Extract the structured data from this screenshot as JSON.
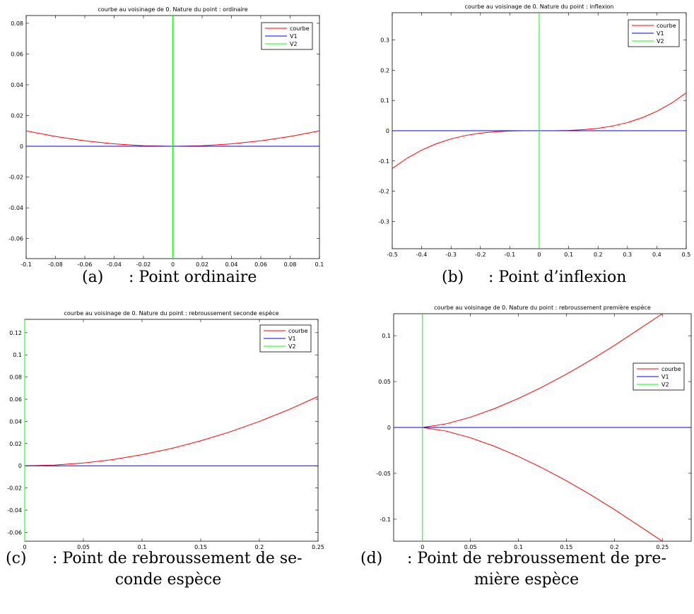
{
  "colors": {
    "courbe": "#ff0000",
    "V1": "#0000ff",
    "V2": "#00ff00"
  },
  "chart_data": [
    {
      "type": "line",
      "title": "courbe au voisinage de 0. Nature du point : ordinaire",
      "xlim": [
        -0.1,
        0.1
      ],
      "ylim": [
        -0.073,
        0.085
      ],
      "xticks": [
        -0.1,
        -0.08,
        -0.06,
        -0.04,
        -0.02,
        0,
        0.02,
        0.04,
        0.06,
        0.08,
        0.1
      ],
      "xtick_labels": [
        "-0.1",
        "-0.08",
        "-0.06",
        "-0.04",
        "-0.02",
        "0",
        "0.02",
        "0.04",
        "0.06",
        "0.08",
        "0.1"
      ],
      "yticks": [
        -0.06,
        -0.04,
        -0.02,
        0,
        0.02,
        0.04,
        0.06,
        0.08
      ],
      "ytick_labels": [
        "-0.06",
        "-0.04",
        "-0.02",
        "0",
        "0.02",
        "0.04",
        "0.06",
        "0.08"
      ],
      "legend": [
        "courbe",
        "V1",
        "V2"
      ],
      "legend_position": "top-right",
      "series": [
        {
          "name": "courbe",
          "x": [
            -0.1,
            -0.08,
            -0.06,
            -0.04,
            -0.02,
            0,
            0.02,
            0.04,
            0.06,
            0.08,
            0.1
          ],
          "y": [
            0.01,
            0.0064,
            0.0036,
            0.0016,
            0.0004,
            0,
            0.0004,
            0.0016,
            0.0036,
            0.0064,
            0.01
          ]
        },
        {
          "name": "V1",
          "x": [
            -0.1,
            0.1
          ],
          "y": [
            0,
            0
          ]
        },
        {
          "name": "V2",
          "x": [
            0,
            0
          ],
          "y": [
            -0.073,
            0.085
          ]
        }
      ],
      "caption": {
        "tag": "(a)",
        "text": ": Point ordinaire",
        "text2": ""
      }
    },
    {
      "type": "line",
      "title": "courbe au voisinage de 0. Nature du point : inflexion",
      "xlim": [
        -0.5,
        0.5
      ],
      "ylim": [
        -0.39,
        0.39
      ],
      "xticks": [
        -0.5,
        -0.4,
        -0.3,
        -0.2,
        -0.1,
        0,
        0.1,
        0.2,
        0.3,
        0.4,
        0.5
      ],
      "xtick_labels": [
        "-0.5",
        "-0.4",
        "-0.3",
        "-0.2",
        "-0.1",
        "0",
        "0.1",
        "0.2",
        "0.3",
        "0.4",
        "0.5"
      ],
      "yticks": [
        -0.3,
        -0.2,
        -0.1,
        0,
        0.1,
        0.2,
        0.3
      ],
      "ytick_labels": [
        "-0.3",
        "-0.2",
        "-0.1",
        "0",
        "0.1",
        "0.2",
        "0.3"
      ],
      "legend": [
        "courbe",
        "V1",
        "V2"
      ],
      "legend_position": "top-right",
      "series": [
        {
          "name": "courbe",
          "x": [
            -0.5,
            -0.45,
            -0.4,
            -0.35,
            -0.3,
            -0.25,
            -0.2,
            -0.15,
            -0.1,
            -0.05,
            0,
            0.05,
            0.1,
            0.15,
            0.2,
            0.25,
            0.3,
            0.35,
            0.4,
            0.45,
            0.5
          ],
          "y": [
            -0.125,
            -0.0911,
            -0.064,
            -0.0429,
            -0.027,
            -0.0156,
            -0.008,
            -0.0034,
            -0.001,
            -0.0001,
            0,
            0.0001,
            0.001,
            0.0034,
            0.008,
            0.0156,
            0.027,
            0.0429,
            0.064,
            0.0911,
            0.125
          ]
        },
        {
          "name": "V1",
          "x": [
            -0.5,
            0.5
          ],
          "y": [
            0,
            0
          ]
        },
        {
          "name": "V2",
          "x": [
            0,
            0
          ],
          "y": [
            -0.39,
            0.39
          ]
        }
      ],
      "caption": {
        "tag": "(b)",
        "text": ": Point d’inflexion",
        "text2": ""
      }
    },
    {
      "type": "line",
      "title": "courbe au voisinage de 0. Nature du point : rebroussement seconde espèce",
      "xlim": [
        0,
        0.25
      ],
      "ylim": [
        -0.068,
        0.132
      ],
      "xticks": [
        0,
        0.05,
        0.1,
        0.15,
        0.2,
        0.25
      ],
      "xtick_labels": [
        "0",
        "0.05",
        "0.1",
        "0.15",
        "0.2",
        "0.25"
      ],
      "yticks": [
        -0.06,
        -0.04,
        -0.02,
        0,
        0.02,
        0.04,
        0.06,
        0.08,
        0.1,
        0.12
      ],
      "ytick_labels": [
        "-0.06",
        "-0.04",
        "-0.02",
        "0",
        "0.02",
        "0.04",
        "0.06",
        "0.08",
        "0.1",
        "0.12"
      ],
      "legend": [
        "courbe",
        "V1",
        "V2"
      ],
      "legend_position": "top-right",
      "series": [
        {
          "name": "courbe",
          "x": [
            0,
            0.025,
            0.05,
            0.075,
            0.1,
            0.125,
            0.15,
            0.175,
            0.2,
            0.225,
            0.25
          ],
          "y": [
            0,
            0.0006,
            0.0025,
            0.0056,
            0.01,
            0.0156,
            0.0225,
            0.0306,
            0.04,
            0.0506,
            0.0625
          ]
        },
        {
          "name": "V1",
          "x": [
            0,
            0.25
          ],
          "y": [
            0,
            0
          ]
        },
        {
          "name": "V2",
          "x": [
            0,
            0
          ],
          "y": [
            -0.068,
            0.132
          ]
        }
      ],
      "caption": {
        "tag": "(c)",
        "text": ": Point de rebroussement de se-",
        "text2": "conde espèce"
      }
    },
    {
      "type": "line",
      "title": "courbe au voisinage de 0. Nature du point : rebroussement première espèce",
      "xlim": [
        -0.03,
        0.28
      ],
      "ylim": [
        -0.124,
        0.124
      ],
      "xticks": [
        0,
        0.05,
        0.1,
        0.15,
        0.2,
        0.25
      ],
      "xtick_labels": [
        "0",
        "0.05",
        "0.1",
        "0.15",
        "0.2",
        "0.25"
      ],
      "yticks": [
        -0.1,
        -0.05,
        0,
        0.05,
        0.1
      ],
      "ytick_labels": [
        "-0.1",
        "-0.05",
        "0",
        "0.05",
        "0.1"
      ],
      "legend": [
        "courbe",
        "V1",
        "V2"
      ],
      "legend_position": "right",
      "series": [
        {
          "name": "courbe",
          "x": [
            0,
            0.025,
            0.05,
            0.075,
            0.1,
            0.125,
            0.15,
            0.175,
            0.2,
            0.225,
            0.25
          ],
          "y": [
            0,
            0.004,
            0.0112,
            0.0205,
            0.0316,
            0.0442,
            0.0581,
            0.0732,
            0.0894,
            0.1067,
            0.125
          ]
        },
        {
          "name": "courbe",
          "x": [
            0,
            0.025,
            0.05,
            0.075,
            0.1,
            0.125,
            0.15,
            0.175,
            0.2,
            0.225,
            0.25
          ],
          "y": [
            0,
            -0.004,
            -0.0112,
            -0.0205,
            -0.0316,
            -0.0442,
            -0.0581,
            -0.0732,
            -0.0894,
            -0.1067,
            -0.125
          ]
        },
        {
          "name": "V1",
          "x": [
            -0.03,
            0.28
          ],
          "y": [
            0,
            0
          ]
        },
        {
          "name": "V2",
          "x": [
            0,
            0
          ],
          "y": [
            -0.124,
            0.124
          ]
        }
      ],
      "caption": {
        "tag": "(d)",
        "text": ": Point de rebroussement de pre-",
        "text2": "mière espèce"
      }
    }
  ]
}
